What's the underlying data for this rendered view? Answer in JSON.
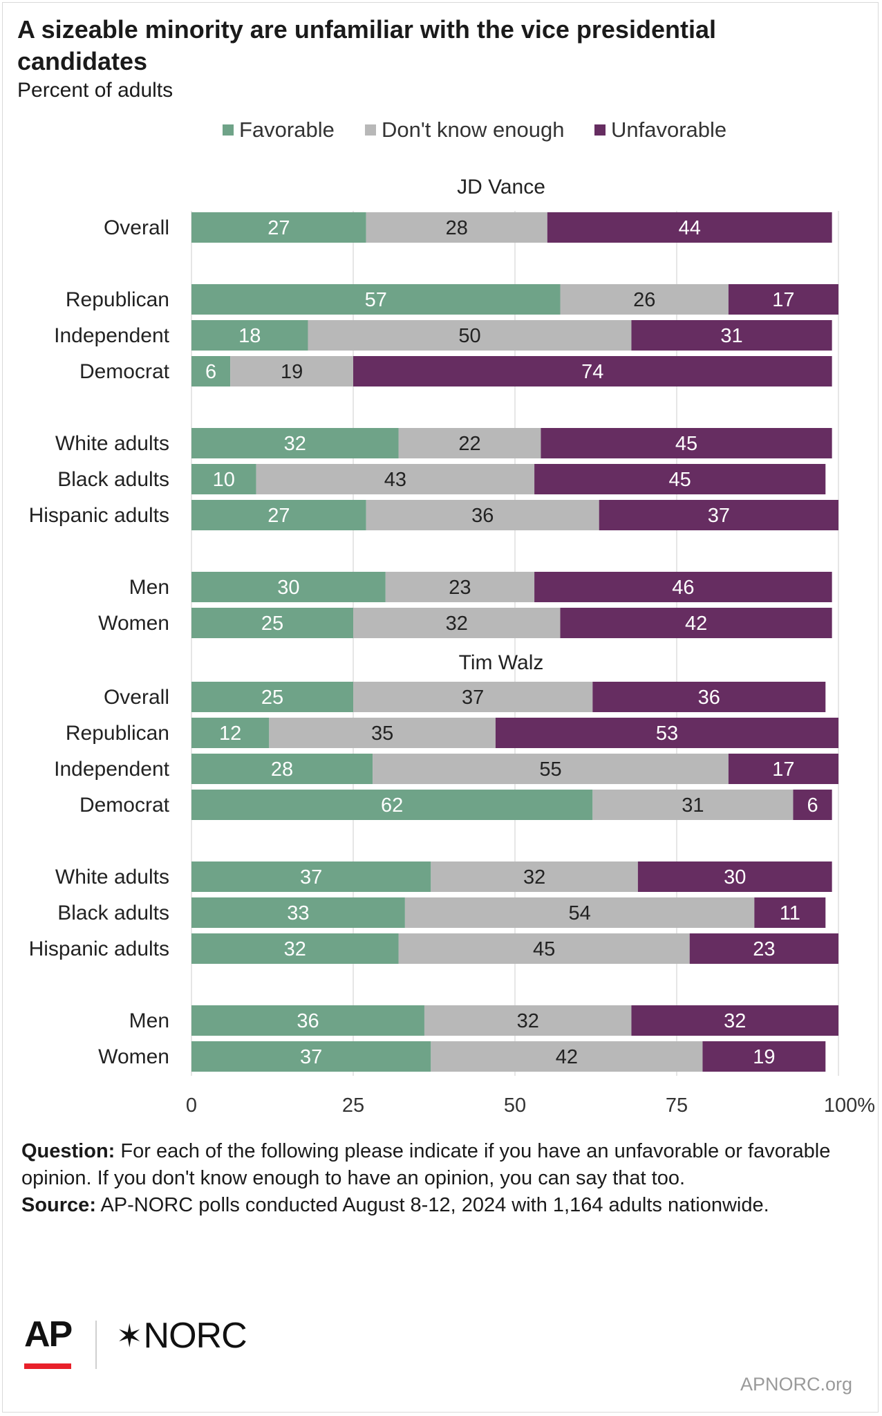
{
  "title": "A sizeable minority are unfamiliar with the vice presidential candidates",
  "subtitle": "Percent of adults",
  "legend": [
    {
      "label": "Favorable",
      "color": "#6fa388"
    },
    {
      "label": "Don't know enough",
      "color": "#b8b8b8"
    },
    {
      "label": "Unfavorable",
      "color": "#662d61"
    }
  ],
  "chart_data": {
    "type": "bar",
    "orientation": "horizontal",
    "stacked": true,
    "xlim": [
      0,
      100
    ],
    "x_ticks": [
      "0",
      "25",
      "50",
      "75",
      "100%"
    ],
    "series_names": [
      "Favorable",
      "Don't know enough",
      "Unfavorable"
    ],
    "colors": [
      "#6fa388",
      "#b8b8b8",
      "#662d61"
    ],
    "grid": true,
    "legend_position": "top",
    "groups": [
      {
        "title": "JD Vance",
        "rows": [
          {
            "label": "Overall",
            "values": [
              27,
              28,
              44
            ]
          },
          {
            "label": "Republican",
            "values": [
              57,
              26,
              17
            ]
          },
          {
            "label": "Independent",
            "values": [
              18,
              50,
              31
            ]
          },
          {
            "label": "Democrat",
            "values": [
              6,
              19,
              74
            ]
          },
          {
            "label": "White adults",
            "values": [
              32,
              22,
              45
            ]
          },
          {
            "label": "Black adults",
            "values": [
              10,
              43,
              45
            ]
          },
          {
            "label": "Hispanic adults",
            "values": [
              27,
              36,
              37
            ]
          },
          {
            "label": "Men",
            "values": [
              30,
              23,
              46
            ]
          },
          {
            "label": "Women",
            "values": [
              25,
              32,
              42
            ]
          }
        ]
      },
      {
        "title": "Tim Walz",
        "rows": [
          {
            "label": "Overall",
            "values": [
              25,
              37,
              36
            ]
          },
          {
            "label": "Republican",
            "values": [
              12,
              35,
              53
            ]
          },
          {
            "label": "Independent",
            "values": [
              28,
              55,
              17
            ]
          },
          {
            "label": "Democrat",
            "values": [
              62,
              31,
              6
            ]
          },
          {
            "label": "White adults",
            "values": [
              37,
              32,
              30
            ]
          },
          {
            "label": "Black adults",
            "values": [
              33,
              54,
              11
            ]
          },
          {
            "label": "Hispanic adults",
            "values": [
              32,
              45,
              23
            ]
          },
          {
            "label": "Men",
            "values": [
              36,
              32,
              32
            ]
          },
          {
            "label": "Women",
            "values": [
              37,
              42,
              19
            ]
          }
        ]
      }
    ]
  },
  "footnote": {
    "question_label": "Question:",
    "question_text": " For each of the following please indicate if you have an unfavorable or favorable opinion. If you don't know enough to have an opinion, you can say that too.",
    "source_label": "Source:",
    "source_text": " AP-NORC polls conducted August 8-12, 2024 with 1,164 adults nationwide."
  },
  "logos": {
    "ap": "AP",
    "norc_star": "✶",
    "norc": "NORC"
  },
  "site": "APNORC.org"
}
